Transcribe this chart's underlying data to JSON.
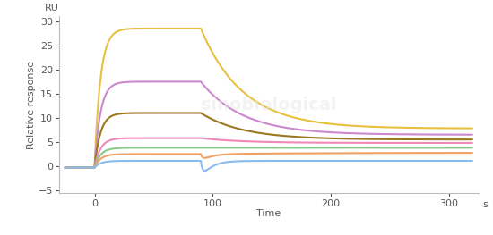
{
  "xlabel": "Time",
  "ylabel": "Relative response",
  "x_unit": "s",
  "y_unit": "RU",
  "xlim": [
    -30,
    325
  ],
  "ylim": [
    -5.5,
    31
  ],
  "xticks": [
    0,
    100,
    200,
    300
  ],
  "yticks": [
    -5,
    0,
    5,
    10,
    15,
    20,
    25,
    30
  ],
  "assoc_start": 0,
  "assoc_end": 90,
  "dissoc_end": 320,
  "curves": [
    {
      "color": "#e8c040",
      "baseline": -0.3,
      "assoc_peak": 28.5,
      "dissoc_plateau": 7.8,
      "dip_depth": 0.0,
      "kon": 18.0,
      "koff": 0.008
    },
    {
      "color": "#cc88cc",
      "baseline": -0.3,
      "assoc_peak": 17.5,
      "dissoc_plateau": 6.5,
      "dip_depth": 0.0,
      "kon": 18.0,
      "koff": 0.008
    },
    {
      "color": "#9a7820",
      "baseline": -0.3,
      "assoc_peak": 11.0,
      "dissoc_plateau": 5.5,
      "dip_depth": 0.0,
      "kon": 18.0,
      "koff": 0.008
    },
    {
      "color": "#f088b8",
      "baseline": -0.3,
      "assoc_peak": 5.8,
      "dissoc_plateau": 4.8,
      "dip_depth": 0.0,
      "kon": 18.0,
      "koff": 0.008
    },
    {
      "color": "#88cc88",
      "baseline": -0.3,
      "assoc_peak": 3.8,
      "dissoc_plateau": 3.8,
      "dip_depth": 0.0,
      "kon": 18.0,
      "koff": 0.008
    },
    {
      "color": "#f0a060",
      "baseline": -0.3,
      "assoc_peak": 2.5,
      "dissoc_plateau": 2.8,
      "dip_depth": -1.2,
      "kon": 18.0,
      "koff": 0.008
    },
    {
      "color": "#88bbee",
      "baseline": -0.3,
      "assoc_peak": 1.1,
      "dissoc_plateau": 1.1,
      "dip_depth": -3.8,
      "kon": 18.0,
      "koff": 0.008
    }
  ],
  "background_color": "#ffffff",
  "axis_color": "#bbbbbb",
  "label_color": "#555555",
  "tick_color": "#555555",
  "fontsize_label": 8,
  "fontsize_tick": 8,
  "fontsize_unit": 8,
  "linewidth": 1.5
}
